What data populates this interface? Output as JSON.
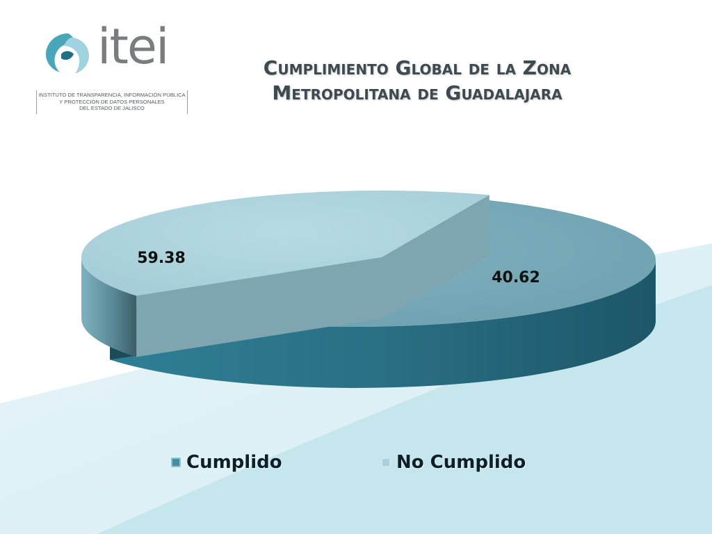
{
  "logo": {
    "wordmark": "itei",
    "subtitle_lines": [
      "INSTITUTO DE TRANSPARENCIA, INFORMACIÓN PÚBLICA",
      "Y PROTECCIÓN DE DATOS PERSONALES",
      "DEL ESTADO DE JALISCO"
    ]
  },
  "title_lines": [
    "Cumplimiento Global de la Zona",
    "Metropolitana de Guadalajara"
  ],
  "colors": {
    "cumplido": "#3f8fa3",
    "no_cumplido": "#a9d1dc",
    "background_band": "#c5e6ee"
  },
  "chart_data": {
    "type": "pie",
    "style": "3d-exploded",
    "title": "Cumplimiento Global de la Zona Metropolitana de Guadalajara",
    "categories": [
      "Cumplido",
      "No Cumplido"
    ],
    "values": [
      59.38,
      40.62
    ],
    "data_labels": [
      "59.38",
      "40.62"
    ],
    "legend_position": "bottom"
  }
}
